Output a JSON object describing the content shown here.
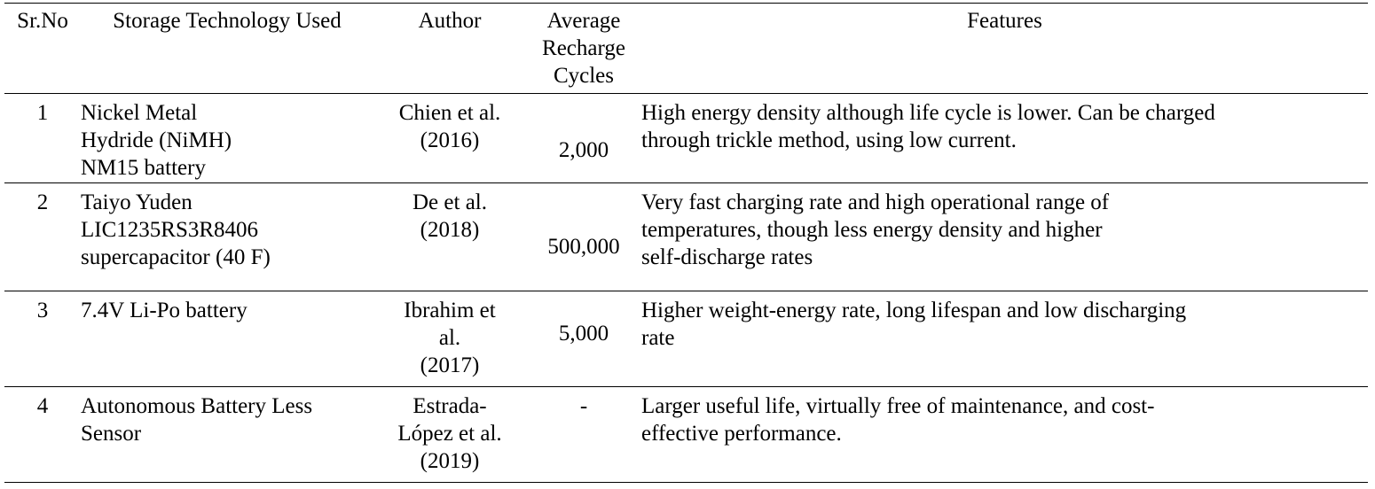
{
  "table": {
    "headers": {
      "sr_no": "Sr.No",
      "technology": "Storage Technology Used",
      "author": "Author",
      "cycles": "Average\nRecharge\nCycles",
      "features": "Features"
    },
    "rows": [
      {
        "sr_no": "1",
        "technology": "Nickel Metal\nHydride (NiMH)\nNM15 battery",
        "author": "Chien et al.\n(2016)",
        "cycles": "2,000",
        "features": "High energy density although life cycle is lower. Can be charged\nthrough trickle method, using low current."
      },
      {
        "sr_no": "2",
        "technology": "Taiyo Yuden\nLIC1235RS3R8406\nsupercapacitor (40 F)",
        "author": "De et al.\n(2018)",
        "cycles": "500,000",
        "features": "Very fast charging rate and high operational range of\ntemperatures, though less energy density and higher\nself-discharge rates"
      },
      {
        "sr_no": "3",
        "technology": "7.4V Li-Po battery",
        "author": "Ibrahim et\nal.\n(2017)",
        "cycles": "5,000",
        "features": "Higher weight-energy rate, long lifespan and low discharging\nrate"
      },
      {
        "sr_no": "4",
        "technology": "Autonomous Battery Less\nSensor",
        "author": "Estrada-\nLópez et al.\n(2019)",
        "cycles": "-",
        "features": "Larger useful life, virtually free of maintenance, and cost-\neffective performance."
      }
    ]
  }
}
